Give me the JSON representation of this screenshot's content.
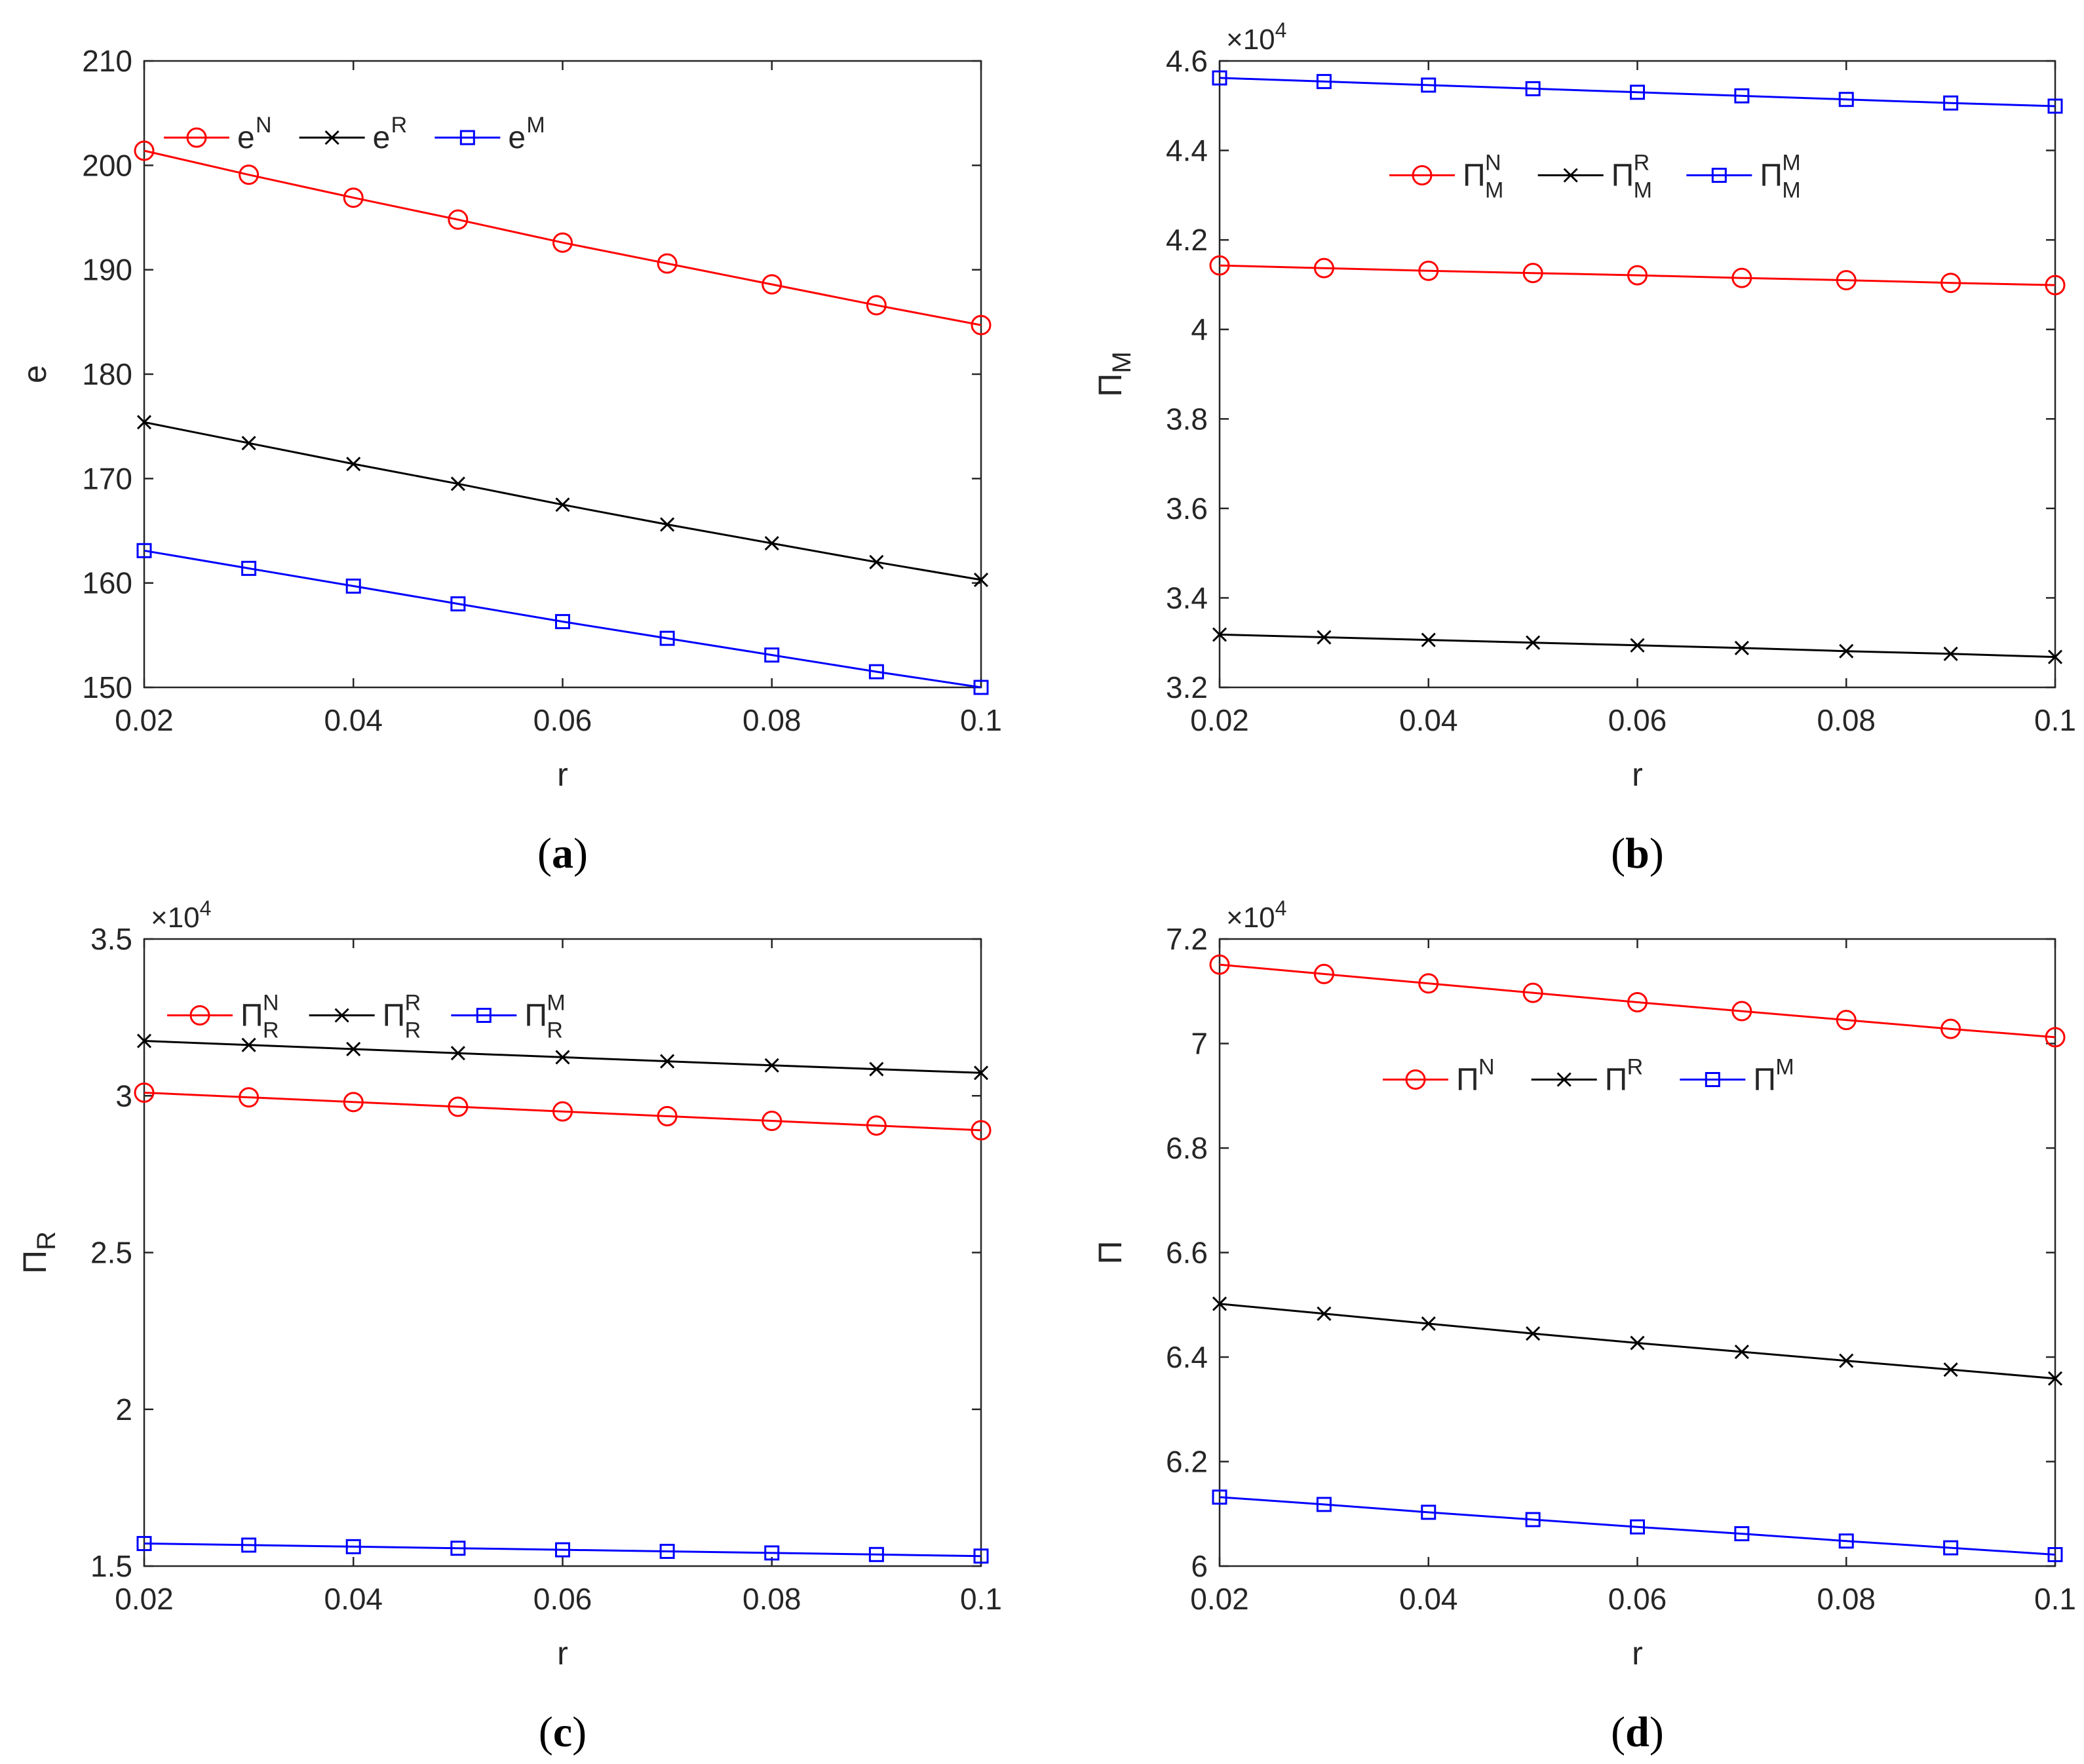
{
  "figure": {
    "colors": {
      "N": "#ff0000",
      "R": "#000000",
      "M": "#0000ff",
      "axis": "#262626"
    },
    "marker_names": {
      "N": "circle",
      "R": "cross",
      "M": "square"
    }
  },
  "chart_data": [
    {
      "id": "a",
      "type": "line",
      "caption_letter": "a",
      "xlabel": "r",
      "ylabel_base": "e",
      "ylabel_sub": "",
      "exponent_label": "",
      "x": [
        0.02,
        0.03,
        0.04,
        0.05,
        0.06,
        0.07,
        0.08,
        0.09,
        0.1
      ],
      "xlim": [
        0.02,
        0.1
      ],
      "xticks": [
        "0.02",
        "0.04",
        "0.06",
        "0.08",
        "0.1"
      ],
      "xtick_values": [
        0.02,
        0.04,
        0.06,
        0.08,
        0.1
      ],
      "ylim": [
        150,
        210
      ],
      "yticks": [
        "150",
        "160",
        "170",
        "180",
        "190",
        "200",
        "210"
      ],
      "ytick_values": [
        150,
        160,
        170,
        180,
        190,
        200,
        210
      ],
      "legend_position": "top-left",
      "series": [
        {
          "key": "N",
          "base": "e",
          "sup": "N",
          "sub": "",
          "marker": "circle",
          "values": [
            201.4,
            199.1,
            196.9,
            194.8,
            192.6,
            190.6,
            188.6,
            186.6,
            184.7
          ]
        },
        {
          "key": "R",
          "base": "e",
          "sup": "R",
          "sub": "",
          "marker": "cross",
          "values": [
            175.4,
            173.4,
            171.4,
            169.5,
            167.5,
            165.6,
            163.8,
            162.0,
            160.3
          ]
        },
        {
          "key": "M",
          "base": "e",
          "sup": "M",
          "sub": "",
          "marker": "square",
          "values": [
            163.1,
            161.4,
            159.7,
            158.0,
            156.3,
            154.7,
            153.1,
            151.5,
            150.0
          ]
        }
      ]
    },
    {
      "id": "b",
      "type": "line",
      "caption_letter": "b",
      "xlabel": "r",
      "ylabel_base": "Π",
      "ylabel_sub": "M",
      "exponent_label": "×10",
      "exponent_power": "4",
      "x": [
        0.02,
        0.03,
        0.04,
        0.05,
        0.06,
        0.07,
        0.08,
        0.09,
        0.1
      ],
      "xlim": [
        0.02,
        0.1
      ],
      "xticks": [
        "0.02",
        "0.04",
        "0.06",
        "0.08",
        "0.1"
      ],
      "xtick_values": [
        0.02,
        0.04,
        0.06,
        0.08,
        0.1
      ],
      "ylim": [
        3.2,
        4.6
      ],
      "yticks": [
        "3.2",
        "3.4",
        "3.6",
        "3.8",
        "4",
        "4.2",
        "4.4",
        "4.6"
      ],
      "ytick_values": [
        3.2,
        3.4,
        3.6,
        3.8,
        4.0,
        4.2,
        4.4,
        4.6
      ],
      "legend_position": "top-center",
      "series": [
        {
          "key": "N",
          "base": "Π",
          "sup": "N",
          "sub": "M",
          "marker": "circle",
          "values": [
            4.143,
            4.137,
            4.131,
            4.126,
            4.121,
            4.115,
            4.11,
            4.104,
            4.099
          ]
        },
        {
          "key": "R",
          "base": "Π",
          "sup": "R",
          "sub": "M",
          "marker": "cross",
          "values": [
            3.318,
            3.312,
            3.306,
            3.3,
            3.294,
            3.288,
            3.281,
            3.275,
            3.268
          ]
        },
        {
          "key": "M",
          "base": "Π",
          "sup": "M",
          "sub": "M",
          "marker": "square",
          "values": [
            4.562,
            4.554,
            4.546,
            4.538,
            4.53,
            4.522,
            4.514,
            4.506,
            4.499
          ]
        }
      ]
    },
    {
      "id": "c",
      "type": "line",
      "caption_letter": "c",
      "xlabel": "r",
      "ylabel_base": "Π",
      "ylabel_sub": "R",
      "exponent_label": "×10",
      "exponent_power": "4",
      "x": [
        0.02,
        0.03,
        0.04,
        0.05,
        0.06,
        0.07,
        0.08,
        0.09,
        0.1
      ],
      "xlim": [
        0.02,
        0.1
      ],
      "xticks": [
        "0.02",
        "0.04",
        "0.06",
        "0.08",
        "0.1"
      ],
      "xtick_values": [
        0.02,
        0.04,
        0.06,
        0.08,
        0.1
      ],
      "ylim": [
        1.5,
        3.5
      ],
      "yticks": [
        "1.5",
        "2",
        "2.5",
        "3",
        "3.5"
      ],
      "ytick_values": [
        1.5,
        2.0,
        2.5,
        3.0,
        3.5
      ],
      "legend_position": "top-left",
      "series": [
        {
          "key": "N",
          "base": "Π",
          "sup": "N",
          "sub": "R",
          "marker": "circle",
          "values": [
            3.01,
            2.995,
            2.98,
            2.965,
            2.95,
            2.935,
            2.92,
            2.905,
            2.89
          ]
        },
        {
          "key": "R",
          "base": "Π",
          "sup": "R",
          "sub": "R",
          "marker": "cross",
          "values": [
            3.175,
            3.162,
            3.149,
            3.136,
            3.123,
            3.11,
            3.097,
            3.085,
            3.073
          ]
        },
        {
          "key": "M",
          "base": "Π",
          "sup": "M",
          "sub": "R",
          "marker": "square",
          "values": [
            1.572,
            1.567,
            1.562,
            1.557,
            1.552,
            1.547,
            1.542,
            1.537,
            1.532
          ]
        }
      ]
    },
    {
      "id": "d",
      "type": "line",
      "caption_letter": "d",
      "xlabel": "r",
      "ylabel_base": "Π",
      "ylabel_sub": "",
      "exponent_label": "×10",
      "exponent_power": "4",
      "x": [
        0.02,
        0.03,
        0.04,
        0.05,
        0.06,
        0.07,
        0.08,
        0.09,
        0.1
      ],
      "xlim": [
        0.02,
        0.1
      ],
      "xticks": [
        "0.02",
        "0.04",
        "0.06",
        "0.08",
        "0.1"
      ],
      "xtick_values": [
        0.02,
        0.04,
        0.06,
        0.08,
        0.1
      ],
      "ylim": [
        6.0,
        7.2
      ],
      "yticks": [
        "6",
        "6.2",
        "6.4",
        "6.6",
        "6.8",
        "7",
        "7.2"
      ],
      "ytick_values": [
        6.0,
        6.2,
        6.4,
        6.6,
        6.8,
        7.0,
        7.2
      ],
      "legend_position": "top-center",
      "series": [
        {
          "key": "N",
          "base": "Π",
          "sup": "N",
          "sub": "",
          "marker": "circle",
          "values": [
            7.151,
            7.133,
            7.115,
            7.097,
            7.079,
            7.062,
            7.045,
            7.028,
            7.012
          ]
        },
        {
          "key": "R",
          "base": "Π",
          "sup": "R",
          "sub": "",
          "marker": "cross",
          "values": [
            6.502,
            6.483,
            6.464,
            6.445,
            6.427,
            6.41,
            6.393,
            6.376,
            6.359
          ]
        },
        {
          "key": "M",
          "base": "Π",
          "sup": "M",
          "sub": "",
          "marker": "square",
          "values": [
            6.132,
            6.118,
            6.103,
            6.089,
            6.075,
            6.062,
            6.048,
            6.035,
            6.022
          ]
        }
      ]
    }
  ]
}
